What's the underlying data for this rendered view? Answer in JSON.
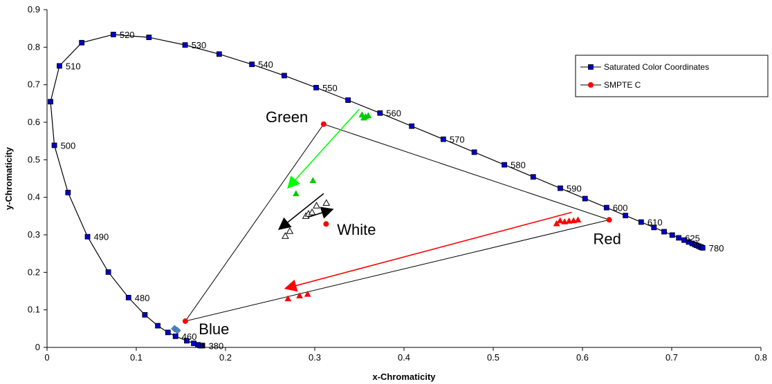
{
  "chart_data": {
    "type": "scatter",
    "xlabel": "x-Chromaticity",
    "ylabel": "y-Chromaticity",
    "xlim": [
      0,
      0.8
    ],
    "ylim": [
      0,
      0.9
    ],
    "x_ticks": [
      "0",
      "0.1",
      "0.2",
      "0.3",
      "0.4",
      "0.5",
      "0.6",
      "0.7",
      "0.8"
    ],
    "y_ticks": [
      "0",
      "0.1",
      "0.2",
      "0.3",
      "0.4",
      "0.5",
      "0.6",
      "0.7",
      "0.8",
      "0.9"
    ],
    "grid": false,
    "legend_position": "top-right",
    "series": [
      {
        "name": "Saturated Color Coordinates",
        "color": "#0000cc",
        "marker": "square",
        "line": true,
        "points": [
          [
            0.1741,
            0.005
          ],
          [
            0.1738,
            0.0049
          ],
          [
            0.1733,
            0.0048
          ],
          [
            0.1726,
            0.0048
          ],
          [
            0.1714,
            0.0051
          ],
          [
            0.1689,
            0.0069
          ],
          [
            0.1644,
            0.0109
          ],
          [
            0.1566,
            0.0177
          ],
          [
            0.144,
            0.0297
          ],
          [
            0.1355,
            0.0399
          ],
          [
            0.1241,
            0.0578
          ],
          [
            0.1096,
            0.0868
          ],
          [
            0.0913,
            0.1327
          ],
          [
            0.0687,
            0.2007
          ],
          [
            0.0454,
            0.295
          ],
          [
            0.0235,
            0.4127
          ],
          [
            0.0082,
            0.5384
          ],
          [
            0.0039,
            0.6548
          ],
          [
            0.0139,
            0.7502
          ],
          [
            0.0389,
            0.812
          ],
          [
            0.0743,
            0.8338
          ],
          [
            0.1142,
            0.8262
          ],
          [
            0.1547,
            0.8059
          ],
          [
            0.1929,
            0.7816
          ],
          [
            0.2296,
            0.7543
          ],
          [
            0.2658,
            0.7243
          ],
          [
            0.3016,
            0.6923
          ],
          [
            0.3373,
            0.6589
          ],
          [
            0.3731,
            0.6245
          ],
          [
            0.4087,
            0.5896
          ],
          [
            0.4441,
            0.5547
          ],
          [
            0.4788,
            0.5202
          ],
          [
            0.5125,
            0.4866
          ],
          [
            0.5448,
            0.4544
          ],
          [
            0.5752,
            0.4242
          ],
          [
            0.6029,
            0.3965
          ],
          [
            0.627,
            0.3725
          ],
          [
            0.6482,
            0.3514
          ],
          [
            0.6658,
            0.334
          ],
          [
            0.6801,
            0.3197
          ],
          [
            0.6915,
            0.3083
          ],
          [
            0.7006,
            0.2993
          ],
          [
            0.7079,
            0.292
          ],
          [
            0.714,
            0.2859
          ],
          [
            0.719,
            0.2809
          ],
          [
            0.723,
            0.277
          ],
          [
            0.726,
            0.274
          ],
          [
            0.728,
            0.272
          ],
          [
            0.7301,
            0.2699
          ],
          [
            0.732,
            0.268
          ],
          [
            0.7334,
            0.2666
          ],
          [
            0.7347,
            0.2653
          ]
        ]
      },
      {
        "name": "SMPTE C",
        "color": "#ff0000",
        "marker": "circle",
        "line": true,
        "points": [
          [
            0.63,
            0.34
          ],
          [
            0.31,
            0.595
          ],
          [
            0.155,
            0.07
          ],
          [
            0.63,
            0.34
          ]
        ],
        "white_point": [
          0.3127,
          0.329
        ]
      }
    ],
    "wavelength_labels": [
      {
        "text": "380",
        "x": 0.1741,
        "y": 0.005
      },
      {
        "text": "460",
        "x": 0.144,
        "y": 0.0297
      },
      {
        "text": "480",
        "x": 0.0913,
        "y": 0.1327
      },
      {
        "text": "490",
        "x": 0.0454,
        "y": 0.295
      },
      {
        "text": "500",
        "x": 0.0082,
        "y": 0.5384
      },
      {
        "text": "510",
        "x": 0.0139,
        "y": 0.7502
      },
      {
        "text": "520",
        "x": 0.0743,
        "y": 0.8338
      },
      {
        "text": "530",
        "x": 0.1547,
        "y": 0.8059
      },
      {
        "text": "540",
        "x": 0.2296,
        "y": 0.7543
      },
      {
        "text": "550",
        "x": 0.3016,
        "y": 0.6923
      },
      {
        "text": "560",
        "x": 0.3731,
        "y": 0.6245
      },
      {
        "text": "570",
        "x": 0.4441,
        "y": 0.5547
      },
      {
        "text": "580",
        "x": 0.5125,
        "y": 0.4866
      },
      {
        "text": "590",
        "x": 0.5752,
        "y": 0.4242
      },
      {
        "text": "600",
        "x": 0.627,
        "y": 0.3725
      },
      {
        "text": "610",
        "x": 0.6658,
        "y": 0.334
      },
      {
        "text": "625",
        "x": 0.7079,
        "y": 0.292
      },
      {
        "text": "780",
        "x": 0.7347,
        "y": 0.2653
      }
    ],
    "measured_points": {
      "green": {
        "color": "#00cc00",
        "points": [
          [
            0.353,
            0.62
          ],
          [
            0.357,
            0.615
          ],
          [
            0.36,
            0.618
          ],
          [
            0.355,
            0.612
          ],
          [
            0.279,
            0.41
          ],
          [
            0.298,
            0.445
          ]
        ]
      },
      "red": {
        "color": "#ff0000",
        "points": [
          [
            0.571,
            0.33
          ],
          [
            0.575,
            0.338
          ],
          [
            0.58,
            0.335
          ],
          [
            0.585,
            0.337
          ],
          [
            0.59,
            0.338
          ],
          [
            0.595,
            0.34
          ],
          [
            0.27,
            0.13
          ],
          [
            0.283,
            0.138
          ],
          [
            0.292,
            0.142
          ]
        ]
      },
      "blue": {
        "color": "#4f81bd",
        "points": [
          [
            0.143,
            0.05
          ],
          [
            0.146,
            0.045
          ]
        ]
      },
      "white": {
        "color": "#000000",
        "points": [
          [
            0.267,
            0.297
          ],
          [
            0.272,
            0.31
          ],
          [
            0.29,
            0.35
          ],
          [
            0.293,
            0.356
          ],
          [
            0.297,
            0.36
          ],
          [
            0.302,
            0.378
          ],
          [
            0.313,
            0.385
          ]
        ]
      }
    },
    "arrows": [
      {
        "color": "#00ff00",
        "from": [
          0.35,
          0.635
        ],
        "to": [
          0.27,
          0.425
        ]
      },
      {
        "color": "#ff0000",
        "from": [
          0.588,
          0.36
        ],
        "to": [
          0.267,
          0.157
        ]
      },
      {
        "color": "#000000",
        "from": [
          0.31,
          0.41
        ],
        "to": [
          0.26,
          0.315
        ]
      },
      {
        "color": "#000000",
        "from": [
          0.29,
          0.345
        ],
        "to": [
          0.32,
          0.368
        ]
      }
    ],
    "annotations": [
      {
        "text": "Green",
        "x": 0.245,
        "y": 0.6
      },
      {
        "text": "White",
        "x": 0.325,
        "y": 0.3
      },
      {
        "text": "Red",
        "x": 0.612,
        "y": 0.275
      },
      {
        "text": "Blue",
        "x": 0.17,
        "y": 0.035
      }
    ]
  }
}
